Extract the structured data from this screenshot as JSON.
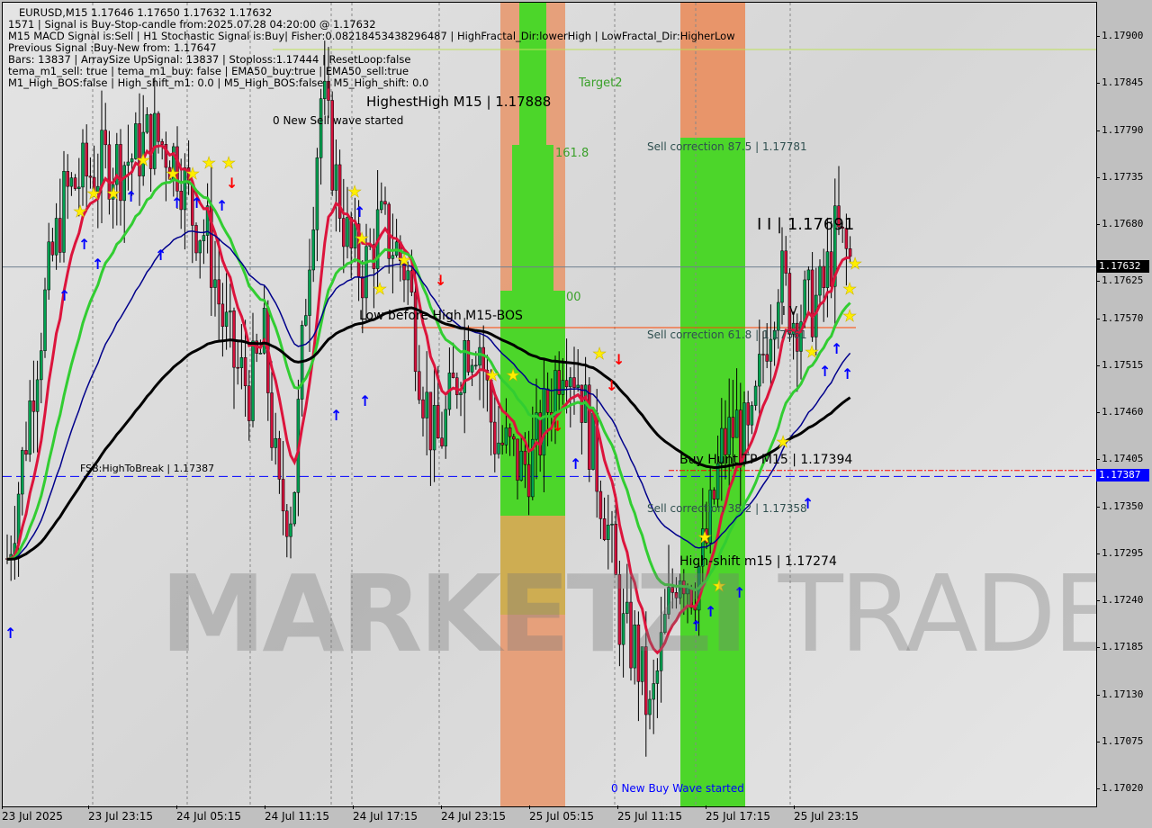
{
  "header": {
    "symbol_line": "EURUSD,M15  1.17646 1.17650 1.17632 1.17632",
    "lines": [
      "1571 | Signal is Buy-Stop-candle from:2025.07.28 04:20:00 @ 1.17632",
      "M15 MACD Signal is:Sell | H1 Stochastic Signal is:Buy| Fisher:0.08218453438296487 | HighFractal_Dir:lowerHigh | LowFractal_Dir:HigherLow",
      "Previous Signal :Buy-New from: 1.17647",
      "Bars: 13837 | ArraySize UpSignal: 13837 | Stoploss:1.17444 | ResetLoop:false",
      "tema_m1_sell: true | tema_m1_buy: false | EMA50_buy:true | EMA50_sell:true",
      "M1_High_BOS:false | High_shift_m1: 0.0 | M5_High_BOS:false | M5_High_shift: 0.0"
    ]
  },
  "labels": {
    "highest_high": "HighestHigh   M15 | 1.17888",
    "new_sell_wave": "0 New Sell wave started",
    "target2": "Target2",
    "fib_161": "161.8",
    "fib_100": "00",
    "sell_corr_875": "Sell correction 87.5 | 1.17781",
    "ii_level": "I I | 1.17691",
    "i_v": "I V",
    "low_before_high": "Low before High   M15-BOS",
    "sell_corr_618": "Sell correction 61.8 | 1.17561",
    "fsb": "FSB:HighToBreak | 1.17387",
    "buy_hunt": "Buy Hunt TP M15 | 1.17394",
    "sell_corr_382": "Sell correction 38.2 | 1.17358",
    "high_shift": "High-shift m15 | 1.17274",
    "new_buy_wave": "0 New Buy Wave started"
  },
  "watermark": "MARKETZI TRADE",
  "colors": {
    "bull": "#00a050",
    "bear": "#d0103a",
    "ema_fast": "#dc143c",
    "ema_mid": "#32cd32",
    "ema_slow": "#00008b",
    "ema_long": "#000000",
    "zone_green": "#4cd62a",
    "zone_orange": "#e8956a",
    "bid_line": "#708090",
    "fsb_line": "#0000ff"
  },
  "chart_data": {
    "type": "candlestick",
    "symbol": "EURUSD",
    "timeframe": "M15",
    "ylim": [
      1.16995,
      1.1794
    ],
    "y_ticks": [
      "1.17900",
      "1.17845",
      "1.17790",
      "1.17735",
      "1.17680",
      "1.17625",
      "1.17570",
      "1.17515",
      "1.17460",
      "1.17405",
      "1.17350",
      "1.17295",
      "1.17240",
      "1.17185",
      "1.17130",
      "1.17075",
      "1.17020"
    ],
    "x_ticks": [
      "23 Jul 2025",
      "23 Jul 23:15",
      "24 Jul 05:15",
      "24 Jul 11:15",
      "24 Jul 17:15",
      "24 Jul 23:15",
      "25 Jul 05:15",
      "25 Jul 11:15",
      "25 Jul 17:15",
      "25 Jul 23:15"
    ],
    "approx_close_path": [
      1.17291,
      1.17396,
      1.17522,
      1.17627,
      1.17712,
      1.17733,
      1.17743,
      1.17754,
      1.17754,
      1.17764,
      1.17785,
      1.17775,
      1.17754,
      1.17691,
      1.17669,
      1.17575,
      1.17512,
      1.17491,
      1.17543,
      1.17354,
      1.17354,
      1.17627,
      1.17838,
      1.17733,
      1.17648,
      1.17627,
      1.1768,
      1.17659,
      1.17627,
      1.17501,
      1.17417,
      1.1747,
      1.17543,
      1.17554,
      1.17438,
      1.17417,
      1.17396,
      1.17417,
      1.1748,
      1.17543,
      1.17501,
      1.17417,
      1.17333,
      1.17206,
      1.17185,
      1.17101,
      1.17206,
      1.17291,
      1.17259,
      1.17312,
      1.17417,
      1.17448,
      1.17417,
      1.17543,
      1.17627,
      1.17575,
      1.17585,
      1.17596,
      1.17669,
      1.17638
    ],
    "current_price": "1.17632",
    "fsb_price": "1.17387"
  }
}
